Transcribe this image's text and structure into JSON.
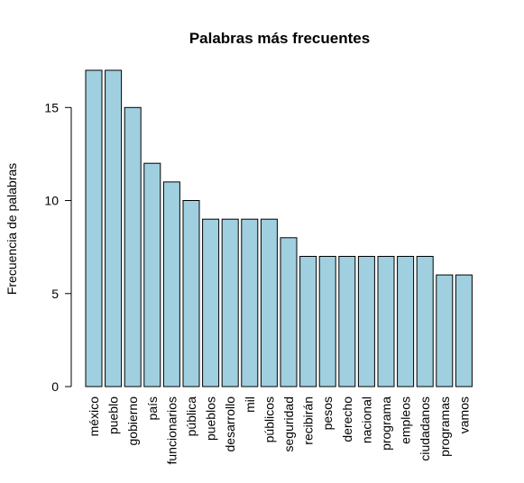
{
  "chart_data": {
    "type": "bar",
    "title": "Palabras más frecuentes",
    "xlabel": "",
    "ylabel": "Frecuencia de palabras",
    "categories": [
      "méxico",
      "pueblo",
      "gobierno",
      "país",
      "funcionarios",
      "pública",
      "pueblos",
      "desarrollo",
      "mil",
      "públicos",
      "seguridad",
      "recibirán",
      "pesos",
      "derecho",
      "nacional",
      "programa",
      "empleos",
      "ciudadanos",
      "programas",
      "vamos"
    ],
    "values": [
      17,
      17,
      15,
      12,
      11,
      10,
      9,
      9,
      9,
      9,
      8,
      7,
      7,
      7,
      7,
      7,
      7,
      7,
      6,
      6
    ],
    "ylim": [
      0,
      17
    ],
    "yticks": [
      0,
      5,
      10,
      15
    ],
    "grid": false,
    "bar_color": "#a0d0e0",
    "bar_edge_color": "#000000"
  }
}
